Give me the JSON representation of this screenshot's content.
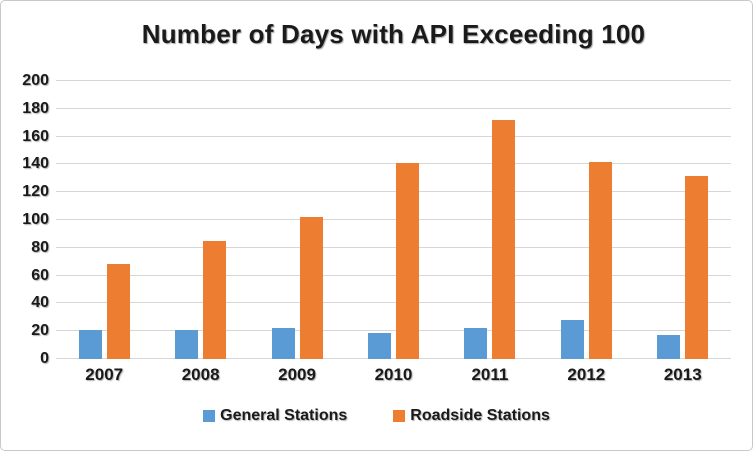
{
  "chart_data": {
    "type": "bar",
    "title": "Number of Days with API Exceeding 100",
    "categories": [
      "2007",
      "2008",
      "2009",
      "2010",
      "2011",
      "2012",
      "2013"
    ],
    "series": [
      {
        "name": "General Stations",
        "color": "#5B9BD5",
        "values": [
          21,
          21,
          22,
          19,
          22,
          28,
          17
        ]
      },
      {
        "name": "Roadside Stations",
        "color": "#ED7D31",
        "values": [
          68,
          85,
          102,
          141,
          172,
          142,
          132
        ]
      }
    ],
    "xlabel": "",
    "ylabel": "",
    "ylim": [
      0,
      200
    ],
    "ytick_step": 20,
    "yticks": [
      0,
      20,
      40,
      60,
      80,
      100,
      120,
      140,
      160,
      180,
      200
    ],
    "grid": true,
    "gridline_color": "#d6d6d6",
    "legend_position": "bottom"
  }
}
